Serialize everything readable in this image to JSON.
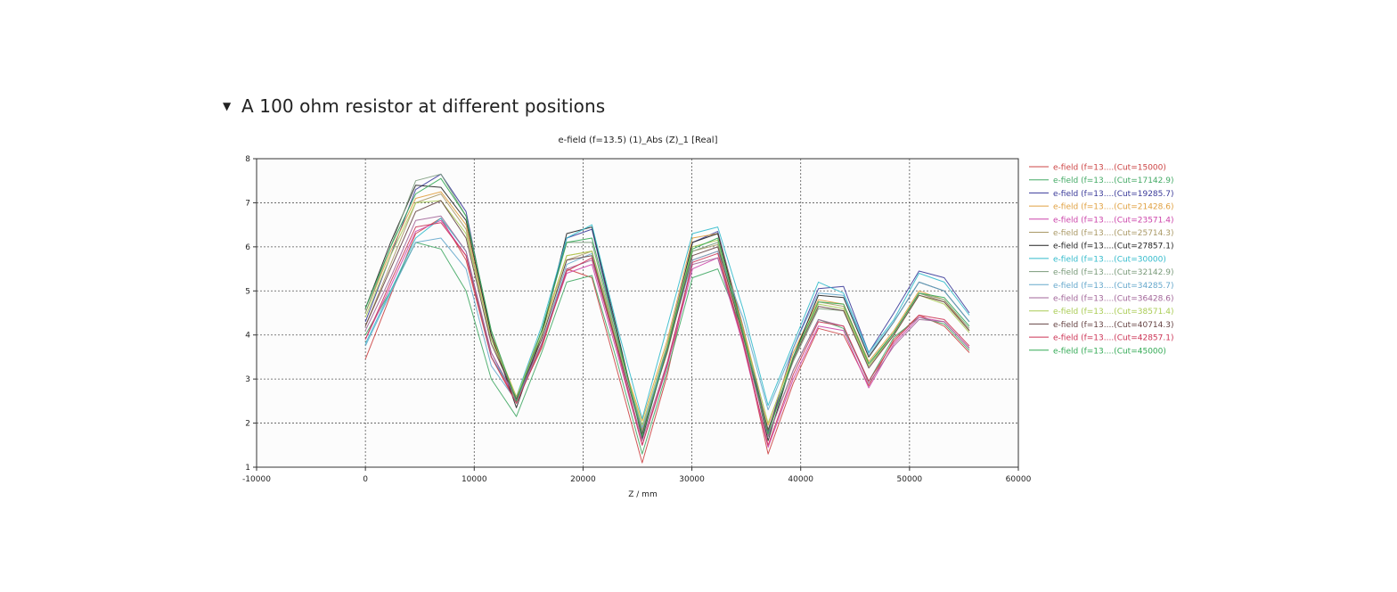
{
  "section": {
    "toggle_icon": "triangle-down-icon",
    "title": "A 100 ohm resistor at different positions"
  },
  "chart_data": {
    "type": "line",
    "title": "e-field (f=13.5) (1)_Abs (Z)_1 [Real]",
    "xlabel": "Z / mm",
    "ylabel": "",
    "xlim": [
      -10000,
      60000
    ],
    "ylim": [
      1,
      8
    ],
    "xticks": [
      -10000,
      0,
      10000,
      20000,
      30000,
      40000,
      50000,
      60000
    ],
    "yticks": [
      1,
      2,
      3,
      4,
      5,
      6,
      7,
      8
    ],
    "grid": true,
    "legend_position": "right",
    "series": [
      {
        "name": "e-field (f=13....(Cut=15000)",
        "color": "#cc4444",
        "y": [
          3.45,
          4.9,
          6.3,
          6.65,
          5.7,
          3.5,
          2.5,
          3.7,
          5.5,
          5.3,
          3.2,
          1.1,
          3.1,
          5.7,
          5.9,
          3.9,
          1.3,
          2.9,
          4.15,
          4.0,
          2.85,
          3.9,
          4.45,
          4.2,
          3.6
        ]
      },
      {
        "name": "e-field (f=13....(Cut=17142.9)",
        "color": "#44aa66",
        "y": [
          4.0,
          5.0,
          6.1,
          5.95,
          5.0,
          3.0,
          2.15,
          3.6,
          5.2,
          5.35,
          3.4,
          1.3,
          3.2,
          5.3,
          5.5,
          4.1,
          1.7,
          3.2,
          4.35,
          4.15,
          2.95,
          3.95,
          4.4,
          4.25,
          3.65
        ]
      },
      {
        "name": "e-field (f=13....(Cut=19285.7)",
        "color": "#3a3a99",
        "y": [
          4.3,
          5.8,
          7.3,
          7.65,
          6.8,
          4.0,
          2.45,
          4.0,
          6.2,
          6.4,
          4.0,
          1.75,
          3.8,
          6.1,
          6.35,
          4.2,
          1.8,
          3.7,
          5.05,
          5.1,
          3.6,
          4.5,
          5.45,
          5.3,
          4.5
        ]
      },
      {
        "name": "e-field (f=13....(Cut=21428.6)",
        "color": "#e0a040",
        "y": [
          4.5,
          5.9,
          7.1,
          7.25,
          6.5,
          4.0,
          2.6,
          4.1,
          5.8,
          5.9,
          3.8,
          2.05,
          3.9,
          6.2,
          6.3,
          4.2,
          1.95,
          3.6,
          4.8,
          4.7,
          3.4,
          4.1,
          5.0,
          4.8,
          4.1
        ]
      },
      {
        "name": "e-field (f=13....(Cut=23571.4)",
        "color": "#cc44aa",
        "y": [
          3.9,
          5.1,
          6.35,
          6.6,
          5.8,
          3.6,
          2.5,
          3.8,
          5.4,
          5.6,
          3.6,
          1.5,
          3.3,
          5.5,
          5.75,
          3.8,
          1.45,
          3.0,
          4.2,
          4.1,
          2.8,
          3.8,
          4.4,
          4.3,
          3.7
        ]
      },
      {
        "name": "e-field (f=13....(Cut=25714.3)",
        "color": "#aa9966",
        "y": [
          4.2,
          5.6,
          7.0,
          7.2,
          6.4,
          3.9,
          2.45,
          3.9,
          5.7,
          5.9,
          3.9,
          1.85,
          3.6,
          5.9,
          6.05,
          4.0,
          1.75,
          3.5,
          4.75,
          4.65,
          3.35,
          4.05,
          4.95,
          4.75,
          4.1
        ]
      },
      {
        "name": "e-field (f=13....(Cut=27857.1)",
        "color": "#222222",
        "y": [
          4.6,
          6.1,
          7.4,
          7.35,
          6.6,
          4.0,
          2.35,
          4.0,
          6.3,
          6.45,
          4.1,
          1.65,
          3.7,
          6.1,
          6.3,
          4.1,
          1.6,
          3.5,
          4.9,
          4.85,
          3.5,
          4.3,
          5.2,
          5.0,
          4.3
        ]
      },
      {
        "name": "e-field (f=13....(Cut=30000)",
        "color": "#33bbcc",
        "y": [
          3.8,
          5.0,
          6.2,
          6.65,
          5.9,
          3.5,
          2.6,
          4.2,
          6.2,
          6.5,
          4.2,
          2.1,
          4.2,
          6.3,
          6.45,
          4.6,
          2.4,
          3.8,
          5.2,
          4.95,
          3.6,
          4.35,
          5.4,
          5.2,
          4.45
        ]
      },
      {
        "name": "e-field (f=13....(Cut=32142.9)",
        "color": "#7a9a7a",
        "y": [
          4.5,
          6.0,
          7.5,
          7.65,
          6.7,
          4.1,
          2.5,
          4.1,
          6.1,
          6.1,
          3.9,
          1.8,
          3.7,
          5.9,
          6.1,
          4.0,
          1.85,
          3.4,
          4.6,
          4.55,
          3.3,
          4.05,
          4.95,
          4.8,
          4.15
        ]
      },
      {
        "name": "e-field (f=13....(Cut=34285.7)",
        "color": "#66a8cc",
        "y": [
          3.75,
          4.95,
          6.1,
          6.2,
          5.5,
          3.3,
          2.5,
          3.8,
          5.6,
          5.85,
          3.8,
          1.9,
          3.7,
          5.7,
          5.9,
          4.4,
          2.3,
          3.7,
          4.95,
          4.9,
          3.55,
          4.3,
          5.2,
          5.0,
          4.3
        ]
      },
      {
        "name": "e-field (f=13....(Cut=36428.6)",
        "color": "#a26699",
        "y": [
          4.1,
          5.3,
          6.6,
          6.7,
          5.9,
          3.6,
          2.55,
          3.8,
          5.5,
          5.7,
          3.7,
          1.6,
          3.4,
          5.6,
          5.75,
          3.9,
          1.7,
          3.2,
          4.35,
          4.2,
          2.9,
          3.75,
          4.35,
          4.3,
          3.7
        ]
      },
      {
        "name": "e-field (f=13....(Cut=38571.4)",
        "color": "#aacc55",
        "y": [
          4.4,
          5.8,
          7.0,
          7.05,
          6.3,
          3.9,
          2.6,
          4.0,
          5.8,
          5.9,
          3.8,
          1.95,
          3.8,
          6.0,
          6.15,
          4.1,
          2.0,
          3.5,
          4.7,
          4.6,
          3.3,
          4.0,
          4.9,
          4.7,
          4.05
        ]
      },
      {
        "name": "e-field (f=13....(Cut=40714.3)",
        "color": "#664444",
        "y": [
          4.2,
          5.5,
          6.8,
          7.05,
          6.2,
          3.8,
          2.55,
          3.9,
          5.7,
          5.8,
          3.75,
          1.75,
          3.65,
          5.8,
          6.0,
          4.0,
          1.85,
          3.45,
          4.65,
          4.55,
          3.25,
          4.0,
          4.9,
          4.75,
          4.1
        ]
      },
      {
        "name": "e-field (f=13....(Cut=42857.1)",
        "color": "#cc3355",
        "y": [
          3.9,
          5.2,
          6.45,
          6.55,
          5.8,
          3.5,
          2.45,
          3.75,
          5.45,
          5.75,
          3.7,
          1.5,
          3.35,
          5.65,
          5.85,
          3.85,
          1.5,
          3.1,
          4.3,
          4.2,
          2.95,
          3.85,
          4.45,
          4.35,
          3.75
        ]
      },
      {
        "name": "e-field (f=13....(Cut=45000)",
        "color": "#33aa55",
        "y": [
          4.6,
          6.0,
          7.2,
          7.55,
          6.7,
          4.1,
          2.5,
          4.1,
          6.1,
          6.2,
          4.0,
          1.7,
          3.7,
          5.95,
          6.2,
          4.05,
          1.75,
          3.5,
          4.75,
          4.7,
          3.35,
          4.05,
          4.95,
          4.85,
          4.2
        ]
      }
    ]
  }
}
